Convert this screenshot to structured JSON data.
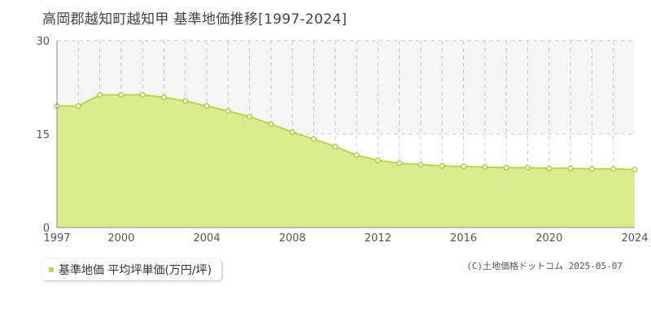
{
  "title": "高岡郡越知町越知甲 基準地価推移[1997-2024]",
  "credit": "(C)土地価格ドットコム 2025-05-07",
  "colors": {
    "fill": "#d9ec8e",
    "line": "#b5d94a",
    "marker_stroke": "#a8cc3c",
    "marker_fill": "#ffffff",
    "legend_marker": "#b5d94a",
    "grid": "#cccccc",
    "band": "#f6f6f6",
    "axis": "#888888"
  },
  "chart_data": {
    "type": "area",
    "title": "高岡郡越知町越知甲 基準地価推移[1997-2024]",
    "xlabel": "",
    "ylabel": "",
    "xlim": [
      1997,
      2024
    ],
    "ylim": [
      0,
      30
    ],
    "y_ticks": [
      0,
      15,
      30
    ],
    "x_ticks": [
      1997,
      2000,
      2004,
      2008,
      2012,
      2016,
      2020,
      2024
    ],
    "grid": true,
    "legend_position": "bottom-left",
    "series": [
      {
        "name": "基準地価 平均坪単価(万円/坪)",
        "x": [
          1997,
          1998,
          1999,
          2000,
          2001,
          2002,
          2003,
          2004,
          2005,
          2006,
          2007,
          2008,
          2009,
          2010,
          2011,
          2012,
          2013,
          2014,
          2015,
          2016,
          2017,
          2018,
          2019,
          2020,
          2021,
          2022,
          2023,
          2024
        ],
        "values": [
          19.5,
          19.5,
          21.3,
          21.3,
          21.3,
          20.9,
          20.3,
          19.5,
          18.7,
          17.8,
          16.6,
          15.3,
          14.2,
          13.0,
          11.6,
          10.8,
          10.3,
          10.1,
          9.9,
          9.8,
          9.7,
          9.6,
          9.6,
          9.5,
          9.5,
          9.4,
          9.4,
          9.3
        ]
      }
    ]
  }
}
